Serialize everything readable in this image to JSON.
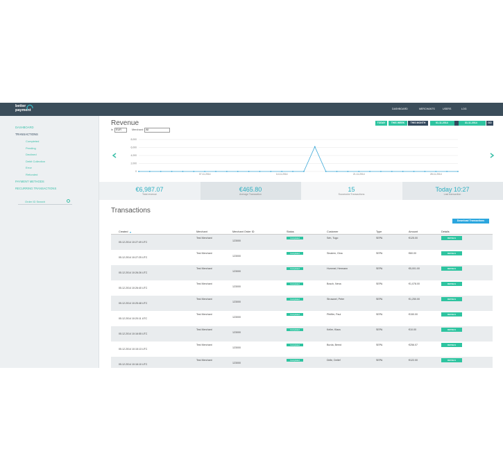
{
  "header": {
    "logo": [
      "better",
      "payment"
    ],
    "nav": [
      "DASHBOARD",
      "MERCHANTS",
      "USERS",
      "LOG"
    ]
  },
  "sidebar": {
    "items": [
      {
        "label": "DASHBOARD"
      },
      {
        "label": "TRANSACTIONS",
        "children": [
          "Completed",
          "Pending",
          "Declined",
          "Debit Collection",
          "Error",
          "Refunded"
        ]
      },
      {
        "label": "PAYMENT METHODS"
      },
      {
        "label": "RECURRING TRANSACTIONS"
      }
    ],
    "search_placeholder": "Order ID Search"
  },
  "revenue": {
    "title": "Revenue",
    "currency_label": "In",
    "currency": "EUR",
    "merchant_label": "Merchant:",
    "merchant": "All",
    "buttons": [
      "TODAY",
      "THIS WEEK",
      "THIS MONTH"
    ],
    "date_from": "01.11.2014",
    "date_to": "31.11.2014",
    "go": "GO"
  },
  "chart_data": {
    "type": "line",
    "categories": [
      null,
      null,
      null,
      null,
      null,
      null,
      "07.11.2014",
      null,
      null,
      null,
      null,
      null,
      null,
      "14.11.2014",
      null,
      null,
      null,
      null,
      null,
      null,
      "21.11.2014",
      null,
      null,
      null,
      null,
      null,
      null,
      "28.11.2014",
      null,
      null
    ],
    "values": [
      0,
      0,
      0,
      0,
      0,
      0,
      0,
      0,
      0,
      0,
      0,
      0,
      0,
      0,
      0,
      0,
      6200,
      0,
      0,
      0,
      0,
      0,
      0,
      0,
      0,
      0,
      0,
      0,
      0,
      0
    ],
    "color": "#3aa8d8",
    "ylim": [
      0,
      8000
    ],
    "yticks": [
      0,
      {
        "value": 2000,
        "label": "2,000"
      },
      {
        "value": 4000,
        "label": "4,000"
      },
      {
        "value": 6000,
        "label": "6,000"
      },
      {
        "value": 8000,
        "label": "8,000"
      }
    ],
    "grid": true
  },
  "stats": [
    {
      "value": "€6,987.07",
      "label": "Total revenue"
    },
    {
      "value": "€465.80",
      "label": "Average Transaction"
    },
    {
      "value": "15",
      "label": "Successful Transactions"
    },
    {
      "value": "Today 10:27",
      "label": "Last transaction"
    }
  ],
  "transactions": {
    "title": "Transactions",
    "download": "Download Transactions",
    "columns": [
      "Created",
      "Merchant",
      "Merchant Order ID",
      "Status",
      "Customer",
      "Type",
      "Amount",
      "Details"
    ],
    "details_button": "DETAILS",
    "rows": [
      [
        "05.12.2014 10:27:49 UTC",
        "Test Merchant",
        "123000",
        "Completed",
        "Seh, Tugo",
        "SEPA",
        "€125.00"
      ],
      [
        "05.12.2014 10:27:25 UTC",
        "Test Merchant",
        "123000",
        "Completed",
        "Sinaiem, Gina",
        "SEPA",
        "€60.00"
      ],
      [
        "05.12.2014 10:26:26 UTC",
        "Test Merchant",
        "123000",
        "Completed",
        "Hummel, Hermann",
        "SEPA",
        "€5,001.00"
      ],
      [
        "05.12.2014 10:26:40 UTC",
        "Test Merchant",
        "123000",
        "Completed",
        "Bosch, Nena",
        "SEPA",
        "€1,078.00"
      ],
      [
        "05.12.2014 10:25:48 UTC",
        "Test Merchant",
        "123000",
        "Completed",
        "Struwwel, Peter",
        "SEPA",
        "€1,250.00"
      ],
      [
        "05.12.2014 10:20:11 UTC",
        "Test Merchant",
        "123000",
        "Completed",
        "Pfeiffer, Paul",
        "SEPA",
        "€150.00"
      ],
      [
        "05.12.2014 10:16:55 UTC",
        "Test Merchant",
        "123000",
        "Completed",
        "Keller, Klaus",
        "SEPA",
        "€10.00"
      ],
      [
        "05.12.2014 10:15:13 UTC",
        "Test Merchant",
        "123000",
        "Completed",
        "Burda, Bernd",
        "SEPA",
        "€256.07"
      ],
      [
        "05.12.2014 10:16:10 UTC",
        "Test Merchant",
        "123000",
        "Completed",
        "Dirlle, Detlef",
        "SEPA",
        "€122.00"
      ]
    ]
  }
}
